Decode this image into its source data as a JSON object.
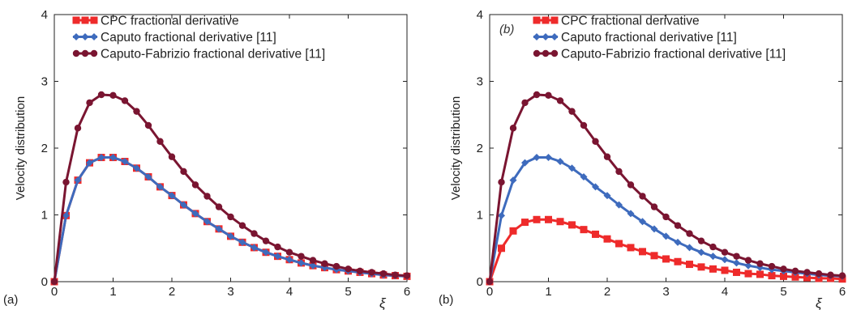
{
  "chart_data": [
    {
      "type": "line",
      "panel_label": "(a)",
      "inset_label": "",
      "xlabel": "ξ",
      "ylabel": "Velocity distribution",
      "xlim": [
        0,
        6
      ],
      "ylim": [
        0,
        4
      ],
      "xticks": [
        "0",
        "1",
        "2",
        "3",
        "4",
        "5",
        "6"
      ],
      "yticks": [
        "0",
        "1",
        "2",
        "3",
        "4"
      ],
      "grid": false,
      "legend_position": "top-left",
      "x": [
        0,
        0.2,
        0.4,
        0.6,
        0.8,
        1.0,
        1.2,
        1.4,
        1.6,
        1.8,
        2.0,
        2.2,
        2.4,
        2.6,
        2.8,
        3.0,
        3.2,
        3.4,
        3.6,
        3.8,
        4.0,
        4.2,
        4.4,
        4.6,
        4.8,
        5.0,
        5.2,
        5.4,
        5.6,
        5.8,
        6.0
      ],
      "series": [
        {
          "name": "CPC fractional derivative",
          "color": "#ee2b2b",
          "marker": "square",
          "values": [
            0,
            0.99,
            1.52,
            1.78,
            1.86,
            1.86,
            1.8,
            1.7,
            1.57,
            1.42,
            1.29,
            1.15,
            1.02,
            0.9,
            0.79,
            0.68,
            0.59,
            0.51,
            0.44,
            0.38,
            0.33,
            0.28,
            0.24,
            0.21,
            0.18,
            0.16,
            0.14,
            0.12,
            0.1,
            0.09,
            0.08
          ]
        },
        {
          "name": "Caputo fractional derivative [11]",
          "color": "#3e6bbd",
          "marker": "diamond",
          "values": [
            0,
            0.99,
            1.52,
            1.78,
            1.86,
            1.86,
            1.8,
            1.7,
            1.57,
            1.42,
            1.29,
            1.15,
            1.02,
            0.9,
            0.79,
            0.68,
            0.59,
            0.51,
            0.44,
            0.38,
            0.33,
            0.28,
            0.24,
            0.21,
            0.18,
            0.16,
            0.14,
            0.12,
            0.1,
            0.09,
            0.08
          ]
        },
        {
          "name": "Caputo-Fabrizio fractional derivative [11]",
          "color": "#7a1531",
          "marker": "circle",
          "values": [
            0,
            1.49,
            2.3,
            2.68,
            2.8,
            2.79,
            2.71,
            2.55,
            2.34,
            2.1,
            1.87,
            1.65,
            1.45,
            1.28,
            1.12,
            0.97,
            0.84,
            0.72,
            0.61,
            0.52,
            0.44,
            0.38,
            0.32,
            0.27,
            0.23,
            0.19,
            0.16,
            0.14,
            0.12,
            0.1,
            0.09
          ]
        }
      ]
    },
    {
      "type": "line",
      "panel_label": "(b)",
      "inset_label": "(b)",
      "xlabel": "ξ",
      "ylabel": "Velocity distribution",
      "xlim": [
        0,
        6
      ],
      "ylim": [
        0,
        4
      ],
      "xticks": [
        "0",
        "1",
        "2",
        "3",
        "4",
        "5",
        "6"
      ],
      "yticks": [
        "0",
        "1",
        "2",
        "3",
        "4"
      ],
      "grid": false,
      "legend_position": "top-left",
      "x": [
        0,
        0.2,
        0.4,
        0.6,
        0.8,
        1.0,
        1.2,
        1.4,
        1.6,
        1.8,
        2.0,
        2.2,
        2.4,
        2.6,
        2.8,
        3.0,
        3.2,
        3.4,
        3.6,
        3.8,
        4.0,
        4.2,
        4.4,
        4.6,
        4.8,
        5.0,
        5.2,
        5.4,
        5.6,
        5.8,
        6.0
      ],
      "series": [
        {
          "name": "CPC fractional derivative",
          "color": "#ee2b2b",
          "marker": "square",
          "values": [
            0,
            0.5,
            0.76,
            0.89,
            0.93,
            0.93,
            0.9,
            0.85,
            0.78,
            0.71,
            0.64,
            0.57,
            0.51,
            0.45,
            0.39,
            0.34,
            0.3,
            0.26,
            0.22,
            0.19,
            0.17,
            0.14,
            0.12,
            0.11,
            0.09,
            0.08,
            0.07,
            0.06,
            0.05,
            0.05,
            0.04
          ]
        },
        {
          "name": "Caputo fractional derivative [11]",
          "color": "#3e6bbd",
          "marker": "diamond",
          "values": [
            0,
            0.99,
            1.52,
            1.78,
            1.86,
            1.86,
            1.8,
            1.7,
            1.57,
            1.42,
            1.29,
            1.15,
            1.02,
            0.9,
            0.79,
            0.68,
            0.59,
            0.51,
            0.44,
            0.38,
            0.33,
            0.28,
            0.24,
            0.21,
            0.18,
            0.16,
            0.14,
            0.12,
            0.1,
            0.09,
            0.08
          ]
        },
        {
          "name": "Caputo-Fabrizio fractional derivative [11]",
          "color": "#7a1531",
          "marker": "circle",
          "values": [
            0,
            1.49,
            2.3,
            2.68,
            2.8,
            2.79,
            2.71,
            2.55,
            2.34,
            2.1,
            1.87,
            1.65,
            1.45,
            1.28,
            1.12,
            0.97,
            0.84,
            0.72,
            0.61,
            0.52,
            0.44,
            0.38,
            0.32,
            0.27,
            0.23,
            0.19,
            0.16,
            0.14,
            0.12,
            0.1,
            0.09
          ]
        }
      ]
    }
  ]
}
